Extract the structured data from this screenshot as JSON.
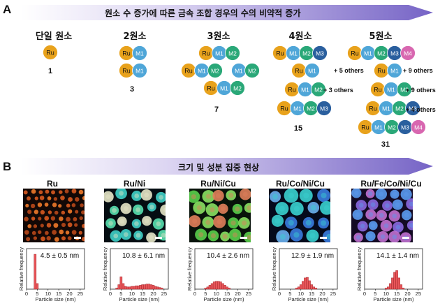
{
  "panel_a": {
    "label": "A",
    "banner": "원소 수 증가에 따른 금속 조합 경우의 수의 비약적 증가",
    "columns": [
      {
        "title": "단일 원소",
        "count": "1",
        "notes": []
      },
      {
        "title": "2원소",
        "count": "3",
        "notes": []
      },
      {
        "title": "3원소",
        "count": "7",
        "notes": []
      },
      {
        "title": "4원소",
        "count": "15",
        "notes": [
          "+ 5 others",
          "+ 3 others"
        ]
      },
      {
        "title": "5원소",
        "count": "31",
        "notes": [
          "+ 9 others",
          "+ 9 others",
          "+ 4 others"
        ]
      }
    ],
    "atoms": {
      "ru": "Ru",
      "m1": "M1",
      "m2": "M2",
      "m3": "M3",
      "m4": "M4"
    },
    "colors": {
      "ru": "#e8a21c",
      "m1": "#4fa6d8",
      "m2": "#2aa878",
      "m3": "#2a5f9e",
      "m4": "#d867b0"
    }
  },
  "panel_b": {
    "label": "B",
    "banner": "크기 및 성분 집중 현상",
    "histogram_axis": {
      "ylabel": "Relative frequency",
      "xlabel": "Particle size (nm)",
      "ticks": [
        "0",
        "5",
        "10",
        "15",
        "20",
        "25"
      ]
    },
    "samples": [
      {
        "name": "Ru",
        "size": "4.5 ± 0.5 nm"
      },
      {
        "name": "Ru/Ni",
        "size": "10.8 ± 6.1 nm"
      },
      {
        "name": "Ru/Ni/Cu",
        "size": "10.4 ± 2.6 nm"
      },
      {
        "name": "Ru/Co/Ni/Cu",
        "size": "12.9 ± 1.9 nm"
      },
      {
        "name": "Ru/Fe/Co/Ni/Cu",
        "size": "14.1 ± 1.4 nm"
      }
    ]
  },
  "chart_data": [
    {
      "type": "bar",
      "xlabel": "Particle size (nm)",
      "ylabel": "Relative frequency",
      "xlim": [
        0,
        27
      ],
      "x": [
        4,
        5
      ],
      "values": [
        0.62,
        0.1
      ]
    },
    {
      "type": "bar",
      "xlabel": "Particle size (nm)",
      "ylabel": "Relative frequency",
      "xlim": [
        0,
        27
      ],
      "x": [
        3,
        4,
        5,
        6,
        7,
        8,
        9,
        10,
        11,
        12,
        13,
        14,
        15,
        16,
        17,
        18,
        19,
        20,
        21,
        22,
        23,
        24
      ],
      "values": [
        0.02,
        0.08,
        0.22,
        0.1,
        0.05,
        0.04,
        0.04,
        0.05,
        0.05,
        0.06,
        0.06,
        0.07,
        0.08,
        0.08,
        0.09,
        0.09,
        0.08,
        0.07,
        0.05,
        0.04,
        0.03,
        0.02
      ]
    },
    {
      "type": "bar",
      "xlabel": "Particle size (nm)",
      "ylabel": "Relative frequency",
      "xlim": [
        0,
        27
      ],
      "x": [
        5,
        6,
        7,
        8,
        9,
        10,
        11,
        12,
        13,
        14,
        15,
        16
      ],
      "values": [
        0.02,
        0.04,
        0.07,
        0.1,
        0.13,
        0.14,
        0.14,
        0.13,
        0.1,
        0.07,
        0.04,
        0.02
      ]
    },
    {
      "type": "bar",
      "xlabel": "Particle size (nm)",
      "ylabel": "Relative frequency",
      "xlim": [
        0,
        27
      ],
      "x": [
        8,
        9,
        10,
        11,
        12,
        13,
        14,
        15,
        16,
        17
      ],
      "values": [
        0.02,
        0.04,
        0.08,
        0.14,
        0.2,
        0.21,
        0.15,
        0.08,
        0.04,
        0.02
      ]
    },
    {
      "type": "bar",
      "xlabel": "Particle size (nm)",
      "ylabel": "Relative frequency",
      "xlim": [
        0,
        27
      ],
      "x": [
        10,
        11,
        12,
        13,
        14,
        15,
        16,
        17,
        18
      ],
      "values": [
        0.02,
        0.04,
        0.1,
        0.2,
        0.3,
        0.33,
        0.2,
        0.08,
        0.02
      ]
    }
  ]
}
